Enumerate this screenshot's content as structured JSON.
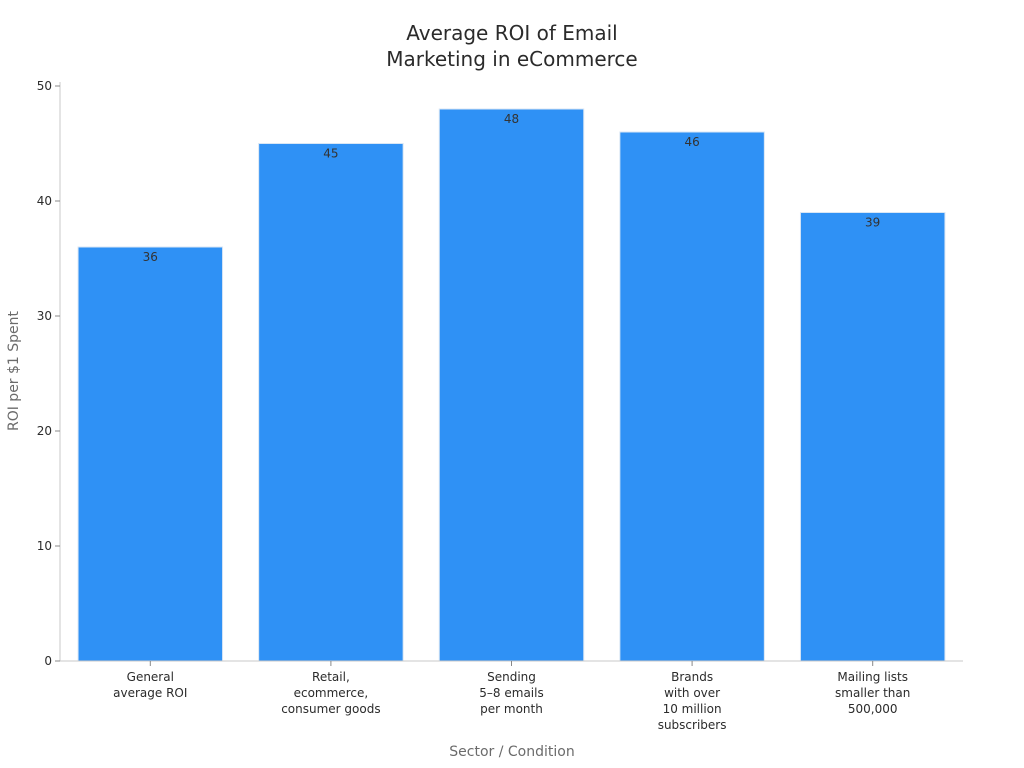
{
  "chart_data": {
    "type": "bar",
    "title": [
      "Average ROI of Email",
      "Marketing in eCommerce"
    ],
    "xlabel": "Sector / Condition",
    "ylabel": "ROI per $1 Spent",
    "categories": [
      [
        "General",
        "average ROI"
      ],
      [
        "Retail,",
        "ecommerce,",
        "consumer goods"
      ],
      [
        "Sending",
        "5–8 emails",
        "per month"
      ],
      [
        "Brands",
        "with over",
        "10 million",
        "subscribers"
      ],
      [
        "Mailing lists",
        "smaller than",
        "500,000"
      ]
    ],
    "values": [
      36,
      45,
      48,
      46,
      39
    ],
    "ylim": [
      0,
      50
    ],
    "yticks": [
      0,
      10,
      20,
      30,
      40,
      50
    ],
    "bar_color": "#2f91f5",
    "grid": false,
    "legend": "none"
  }
}
